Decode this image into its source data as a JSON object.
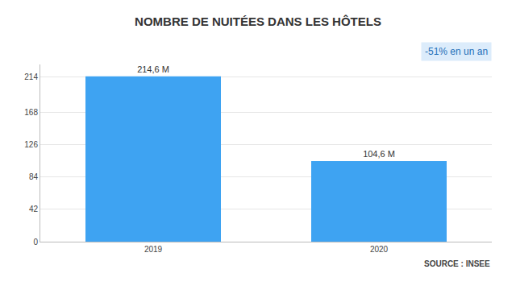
{
  "chart_data": {
    "type": "bar",
    "title": "NOMBRE DE NUITÉES DANS LES HÔTELS",
    "categories": [
      "2019",
      "2020"
    ],
    "values": [
      214.6,
      104.6
    ],
    "value_labels": [
      "214,6 M",
      "104,6 M"
    ],
    "data_labels": true,
    "color": "#3ea3f2",
    "ylim": [
      0,
      230
    ],
    "yticks": [
      0,
      42,
      84,
      126,
      168,
      214
    ],
    "grid": true,
    "annotations": [
      "-51% en un an"
    ],
    "source": "SOURCE : INSEE"
  }
}
